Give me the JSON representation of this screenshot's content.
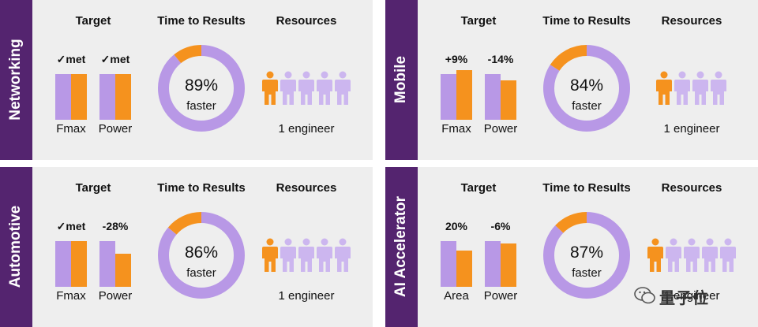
{
  "colors": {
    "purple": "#b898e6",
    "orange": "#f5921e",
    "sidebar": "#54246f",
    "panel_bg": "#eeeeee"
  },
  "headers": {
    "target": "Target",
    "time": "Time to Results",
    "resources": "Resources"
  },
  "donut_sub": "faster",
  "watermark": "量子位",
  "chart_data": [
    {
      "type": "dashboard-panel",
      "title": "Networking",
      "target": {
        "categories": [
          "Fmax",
          "Power"
        ],
        "labels": [
          "✓met",
          "✓met"
        ],
        "baseline": [
          1,
          1
        ],
        "result": [
          1,
          1
        ]
      },
      "time_to_results": {
        "value": 89,
        "label": "89%",
        "remaining": 11
      },
      "resources": {
        "engineers_used": 1,
        "engineers_total": 5,
        "label": "1 engineer"
      }
    },
    {
      "type": "dashboard-panel",
      "title": "Mobile",
      "target": {
        "categories": [
          "Fmax",
          "Power"
        ],
        "labels": [
          "+9%",
          "-14%"
        ],
        "baseline": [
          1,
          1
        ],
        "result": [
          1.09,
          0.86
        ]
      },
      "time_to_results": {
        "value": 84,
        "label": "84%",
        "remaining": 16
      },
      "resources": {
        "engineers_used": 1,
        "engineers_total": 4,
        "label": "1 engineer"
      }
    },
    {
      "type": "dashboard-panel",
      "title": "Automotive",
      "target": {
        "categories": [
          "Fmax",
          "Power"
        ],
        "labels": [
          "✓met",
          "-28%"
        ],
        "baseline": [
          1,
          1
        ],
        "result": [
          1,
          0.72
        ]
      },
      "time_to_results": {
        "value": 86,
        "label": "86%",
        "remaining": 14
      },
      "resources": {
        "engineers_used": 1,
        "engineers_total": 5,
        "label": "1 engineer"
      }
    },
    {
      "type": "dashboard-panel",
      "title": "AI Accelerator",
      "target": {
        "categories": [
          "Area",
          "Power"
        ],
        "labels": [
          "20%",
          "-6%"
        ],
        "baseline": [
          1,
          1
        ],
        "result": [
          0.8,
          0.94
        ]
      },
      "time_to_results": {
        "value": 87,
        "label": "87%",
        "remaining": 13
      },
      "resources": {
        "engineers_used": 1,
        "engineers_total": 5,
        "label": "1 engineer"
      }
    }
  ]
}
